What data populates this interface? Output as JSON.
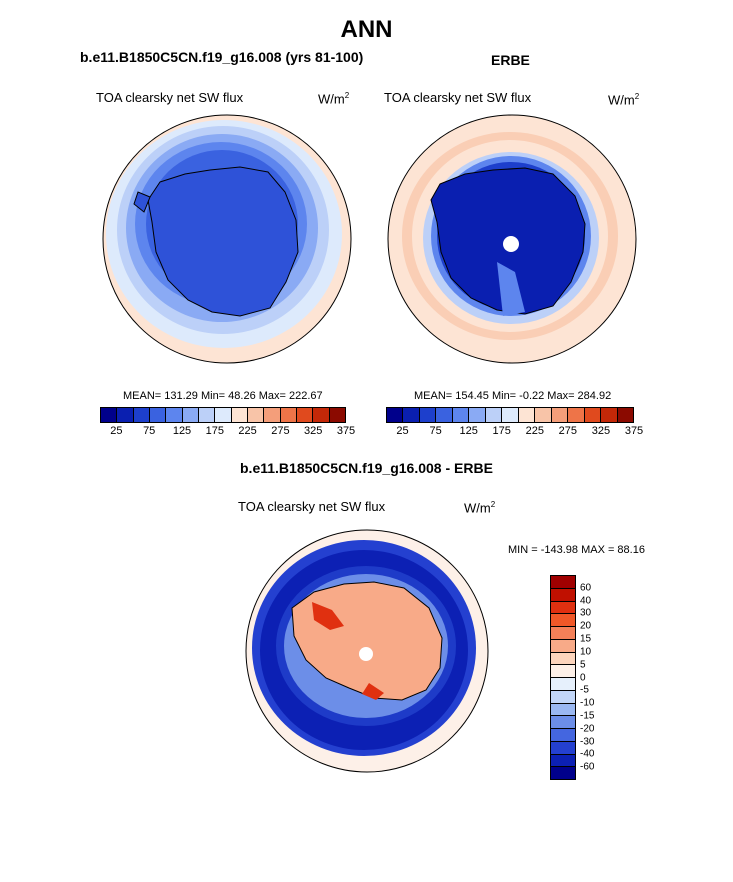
{
  "title": "ANN",
  "panels": {
    "model": {
      "title": "b.e11.B1850C5CN.f19_g16.008 (yrs 81-100)",
      "variable": "TOA clearsky net SW flux",
      "units": "W/m",
      "units_sup": "2",
      "stats": "MEAN= 131.29  Min=  48.26  Max= 222.67"
    },
    "obs": {
      "title": "ERBE",
      "variable": "TOA clearsky net SW flux",
      "units": "W/m",
      "units_sup": "2",
      "stats": "MEAN= 154.45  Min=  -0.22  Max= 284.92"
    },
    "diff": {
      "title": "b.e11.B1850C5CN.f19_g16.008 - ERBE",
      "variable": "TOA clearsky net SW flux",
      "units": "W/m",
      "units_sup": "2",
      "stats": "MIN = -143.98 MAX =  88.16"
    }
  },
  "colorbar_abs": {
    "colors": [
      "#00008b",
      "#0a1fb0",
      "#1d3fcc",
      "#3a62e0",
      "#5d85ee",
      "#8aaaf4",
      "#bcd0f8",
      "#ddeafc",
      "#fde4d4",
      "#f8c4a8",
      "#f49e7a",
      "#ee7448",
      "#e04a1e",
      "#c42808",
      "#8b0a00"
    ],
    "labels": [
      "25",
      "75",
      "125",
      "175",
      "225",
      "275",
      "325",
      "375"
    ]
  },
  "colorbar_diff": {
    "colors": [
      "#a00000",
      "#c01000",
      "#e03010",
      "#f05828",
      "#f48058",
      "#f8aa88",
      "#fcd4bc",
      "#fdf0e8",
      "#e6f0fc",
      "#c2d6f8",
      "#9ab8f2",
      "#6c8ee8",
      "#4466e0",
      "#2440d0",
      "#0c20b4",
      "#00008b"
    ],
    "labels": [
      "60",
      "40",
      "30",
      "20",
      "15",
      "10",
      "5",
      "0",
      "-5",
      "-10",
      "-15",
      "-20",
      "-30",
      "-40",
      "-60"
    ]
  }
}
